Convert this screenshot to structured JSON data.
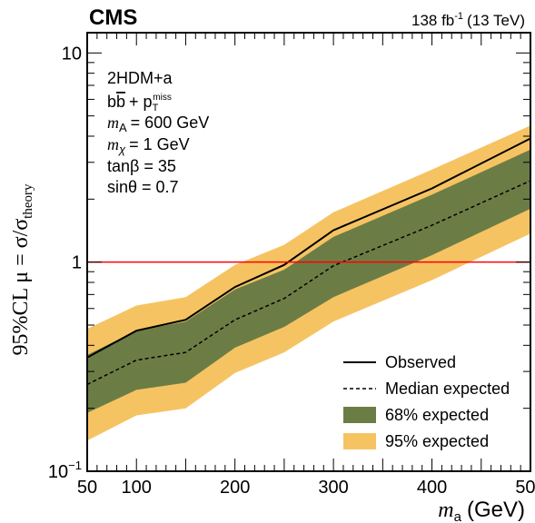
{
  "header": {
    "experiment": "CMS",
    "lumi": "138 fb",
    "lumi_sup": "-1",
    "energy": "(13 TeV)"
  },
  "info": {
    "model": "2HDM+a",
    "process_main": "b",
    "process_bar": "b",
    "process_plus": "+ p",
    "process_sub": "T",
    "process_sup": "miss",
    "mA_sym": "m",
    "mA_sub": "A",
    "mA_val": "= 600 GeV",
    "mchi_sym": "m",
    "mchi_sub": "χ",
    "mchi_val": "= 1 GeV",
    "tanb": "tanβ = 35",
    "sint": "sinθ = 0.7"
  },
  "legend": {
    "observed": "Observed",
    "median": "Median expected",
    "band68": "68% expected",
    "band95": "95% expected"
  },
  "chart_data": {
    "type": "line",
    "xlabel_sym": "m",
    "xlabel_sub": "a",
    "xlabel_unit": "(GeV)",
    "ylabel_prefix": "95%CL  μ = σ/σ",
    "ylabel_sub": "theory",
    "xlim": [
      50,
      500
    ],
    "ylim": [
      0.1,
      12.5
    ],
    "log_y": true,
    "x_ticks": [
      "50",
      "100",
      "200",
      "300",
      "400",
      "500"
    ],
    "y_ticks": [
      {
        "value": 10,
        "label": "10",
        "sup": ""
      },
      {
        "value": 1,
        "label": "1",
        "sup": ""
      },
      {
        "value": 0.1,
        "label": "10",
        "sup": "−1"
      }
    ],
    "x": [
      50,
      100,
      150,
      200,
      250,
      300,
      400,
      500
    ],
    "observed": [
      0.35,
      0.47,
      0.53,
      0.76,
      0.97,
      1.42,
      2.25,
      3.9
    ],
    "median_expected": [
      0.26,
      0.34,
      0.37,
      0.53,
      0.67,
      0.96,
      1.5,
      2.45
    ],
    "band68_lo": [
      0.19,
      0.245,
      0.265,
      0.39,
      0.49,
      0.68,
      1.08,
      1.8
    ],
    "band68_hi": [
      0.36,
      0.47,
      0.52,
      0.74,
      0.92,
      1.32,
      2.1,
      3.45
    ],
    "band95_lo": [
      0.14,
      0.185,
      0.2,
      0.295,
      0.37,
      0.52,
      0.82,
      1.37
    ],
    "band95_hi": [
      0.48,
      0.62,
      0.68,
      0.97,
      1.21,
      1.73,
      2.77,
      4.5
    ],
    "reference_line": 1,
    "grid": false,
    "legend_position": "bottom-right",
    "colors": {
      "observed": "#000000",
      "median": "#000000",
      "band68": "#6b7d45",
      "band95": "#f6c363",
      "reference": "#ff0000"
    }
  }
}
